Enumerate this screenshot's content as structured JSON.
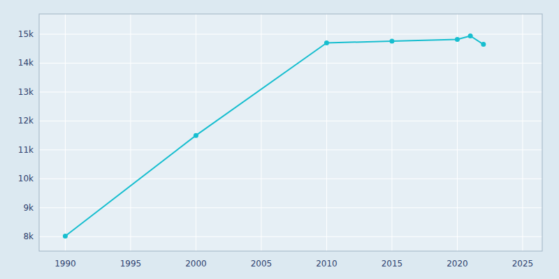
{
  "chart_data": {
    "type": "line",
    "x": [
      1990,
      2000,
      2010,
      2015,
      2020,
      2021,
      2022
    ],
    "values": [
      8020,
      11500,
      14700,
      14760,
      14820,
      14940,
      14650
    ],
    "color": "#17BECF",
    "marker": "circle",
    "line_style": "solid",
    "xlim": [
      1988,
      2026.5
    ],
    "ylim": [
      7500,
      15700
    ],
    "xticks": [
      1990,
      1995,
      2000,
      2005,
      2010,
      2015,
      2020,
      2025
    ],
    "yticks": [
      {
        "value": 8000,
        "label": "8k"
      },
      {
        "value": 9000,
        "label": "9k"
      },
      {
        "value": 10000,
        "label": "10k"
      },
      {
        "value": 11000,
        "label": "11k"
      },
      {
        "value": 12000,
        "label": "12k"
      },
      {
        "value": 13000,
        "label": "13k"
      },
      {
        "value": 14000,
        "label": "14k"
      },
      {
        "value": 15000,
        "label": "15k"
      }
    ],
    "grid": true
  }
}
